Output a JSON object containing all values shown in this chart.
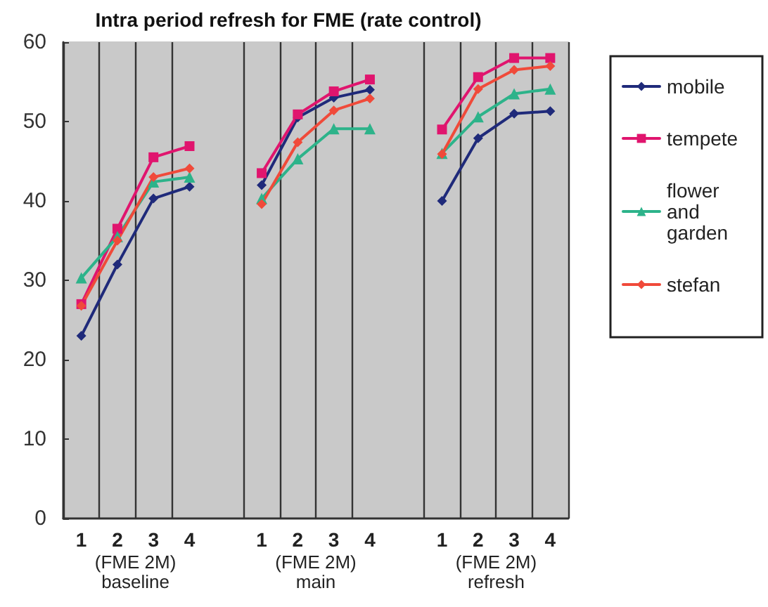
{
  "chart_data": {
    "type": "line",
    "title": "Intra period refresh for FME (rate control)",
    "categories": [
      "1",
      "2",
      "3",
      "4",
      null,
      "1",
      "2",
      "3",
      "4",
      null,
      "1",
      "2",
      "3",
      "4"
    ],
    "series": [
      {
        "name": "mobile",
        "color": "#1f2a7a",
        "marker": "diamond",
        "values": [
          23,
          32,
          40.3,
          41.8,
          null,
          42,
          50.5,
          53,
          54,
          null,
          40,
          47.9,
          51,
          51.3
        ]
      },
      {
        "name": "tempete",
        "color": "#e0156e",
        "marker": "square",
        "values": [
          27,
          36.5,
          45.5,
          46.9,
          null,
          43.5,
          50.9,
          53.8,
          55.3,
          null,
          49,
          55.6,
          58,
          58
        ]
      },
      {
        "name": "flower and garden",
        "color": "#2db38a",
        "marker": "triangle",
        "values": [
          30.3,
          35.5,
          42.4,
          43,
          null,
          40.3,
          45.3,
          49.1,
          49.1,
          null,
          46,
          50.6,
          53.5,
          54.1
        ]
      },
      {
        "name": "stefan",
        "color": "#f04a3a",
        "marker": "diamond",
        "values": [
          26.8,
          35,
          43,
          44.1,
          null,
          39.6,
          47.4,
          51.4,
          52.9,
          null,
          45.9,
          54.1,
          56.5,
          57
        ]
      }
    ],
    "annotations": [
      "(FME 2M)\nbaseline",
      "(FME 2M)\nmain",
      "(FME 2M)\nrefresh"
    ],
    "ylim": [
      0,
      60
    ],
    "yticks": [
      0,
      10,
      20,
      30,
      40,
      50,
      60
    ],
    "grid": "x",
    "legend": "right"
  }
}
